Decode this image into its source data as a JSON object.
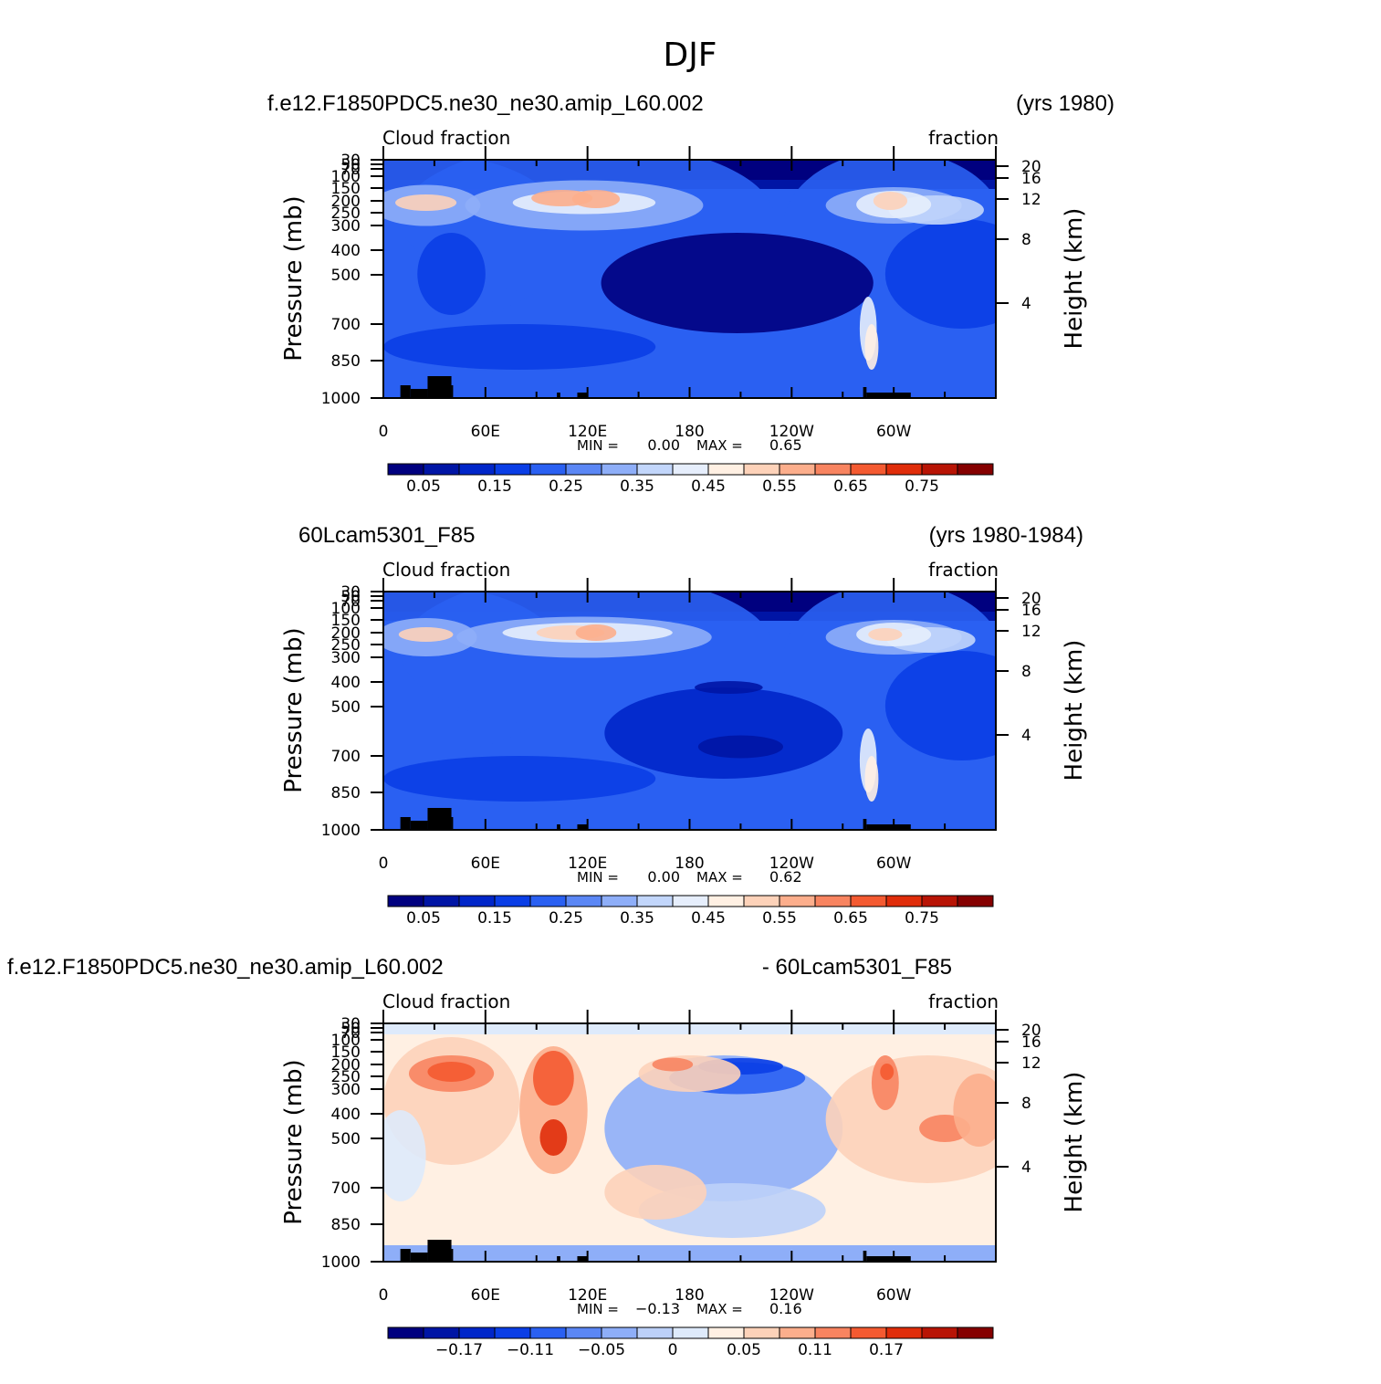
{
  "figure_title": "DJF",
  "colors": {
    "colorbar_abs": [
      "#00007f",
      "#0015a5",
      "#0026c9",
      "#0a3ee6",
      "#2a60f2",
      "#5b87f5",
      "#8eaef8",
      "#c2d6fb",
      "#e6eefc",
      "#fff0e3",
      "#fdd2b9",
      "#fcae8c",
      "#f88460",
      "#f45a31",
      "#e02d0a",
      "#b81405",
      "#850000"
    ],
    "colorbar_diff": [
      "#00007f",
      "#0015a5",
      "#0026c9",
      "#0a3ee6",
      "#2a60f2",
      "#5b87f5",
      "#8eaef8",
      "#bcd0f8",
      "#deeafb",
      "#fff0e3",
      "#fdd2b9",
      "#fcae8c",
      "#f88460",
      "#f45a31",
      "#e02d0a",
      "#b81405",
      "#850000"
    ],
    "terrain": "#000000"
  },
  "chart_data": [
    {
      "type": "heatmap",
      "left_title": "f.e12.F1850PDC5.ne30_ne30.amip_L60.002",
      "right_title": "(yrs 1980)",
      "inner_left": "Cloud fraction",
      "inner_right": "fraction",
      "ylabel": "Pressure (mb)",
      "ylabel_right": "Height (km)",
      "xticks": [
        "0",
        "60E",
        "120E",
        "180",
        "120W",
        "60W"
      ],
      "yticks": [
        "30",
        "50",
        "70",
        "100",
        "150",
        "200",
        "250",
        "300",
        "400",
        "500",
        "700",
        "850",
        "1000"
      ],
      "right_ticks": [
        "20",
        "16",
        "12",
        "8",
        "4"
      ],
      "stats": {
        "min_label": "MIN =",
        "min": "0.00",
        "max_label": "MAX =",
        "max": "0.65"
      },
      "colorbar_labels": [
        "0.05",
        "0.15",
        "0.25",
        "0.35",
        "0.45",
        "0.55",
        "0.65",
        "0.75"
      ]
    },
    {
      "type": "heatmap",
      "left_title": "60Lcam5301_F85",
      "right_title": "(yrs 1980-1984)",
      "inner_left": "Cloud fraction",
      "inner_right": "fraction",
      "ylabel": "Pressure (mb)",
      "ylabel_right": "Height (km)",
      "xticks": [
        "0",
        "60E",
        "120E",
        "180",
        "120W",
        "60W"
      ],
      "yticks": [
        "30",
        "50",
        "70",
        "100",
        "150",
        "200",
        "250",
        "300",
        "400",
        "500",
        "700",
        "850",
        "1000"
      ],
      "right_ticks": [
        "20",
        "16",
        "12",
        "8",
        "4"
      ],
      "stats": {
        "min_label": "MIN =",
        "min": "0.00",
        "max_label": "MAX =",
        "max": "0.62"
      },
      "colorbar_labels": [
        "0.05",
        "0.15",
        "0.25",
        "0.35",
        "0.45",
        "0.55",
        "0.65",
        "0.75"
      ]
    },
    {
      "type": "heatmap",
      "left_title": "f.e12.F1850PDC5.ne30_ne30.amip_L60.002",
      "right_title": "- 60Lcam5301_F85",
      "inner_left": "Cloud fraction",
      "inner_right": "fraction",
      "ylabel": "Pressure (mb)",
      "ylabel_right": "Height (km)",
      "xticks": [
        "0",
        "60E",
        "120E",
        "180",
        "120W",
        "60W"
      ],
      "yticks": [
        "30",
        "50",
        "70",
        "100",
        "150",
        "200",
        "250",
        "300",
        "400",
        "500",
        "700",
        "850",
        "1000"
      ],
      "right_ticks": [
        "20",
        "16",
        "12",
        "8",
        "4"
      ],
      "stats": {
        "min_label": "MIN =",
        "min": "−0.13",
        "max_label": "MAX =",
        "max": "0.16"
      },
      "colorbar_labels": [
        "−0.17",
        "−0.11",
        "−0.05",
        "0",
        "0.05",
        "0.11",
        "0.17"
      ]
    }
  ]
}
